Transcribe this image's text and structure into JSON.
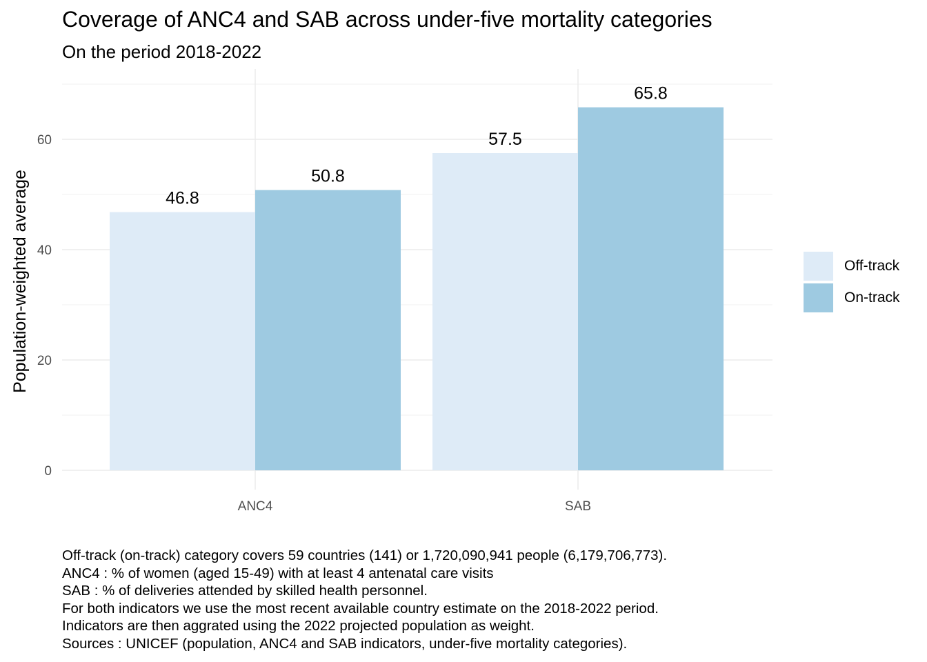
{
  "chart_data": {
    "type": "bar",
    "title": "Coverage of ANC4 and SAB across under-five mortality categories",
    "subtitle": "On the period 2018-2022",
    "xlabel": "",
    "ylabel": "Population-weighted average",
    "categories": [
      "ANC4",
      "SAB"
    ],
    "series": [
      {
        "name": "Off-track",
        "color": "#deebf7",
        "values": [
          46.8,
          57.5
        ],
        "labels": [
          "46.8",
          "57.5"
        ]
      },
      {
        "name": "On-track",
        "color": "#9ecae1",
        "values": [
          50.8,
          65.8
        ],
        "labels": [
          "50.8",
          "65.8"
        ]
      }
    ],
    "ylim": [
      0,
      71
    ],
    "yticks": [
      0,
      20,
      40,
      60
    ],
    "ytick_labels": [
      "0",
      "20",
      "40",
      "60"
    ],
    "grid": true,
    "legend_position": "right",
    "caption": [
      "Off-track (on-track) category covers 59 countries (141) or 1,720,090,941 people (6,179,706,773).",
      "ANC4 : % of women (aged 15-49) with at least 4 antenatal care visits",
      "SAB : % of deliveries attended by skilled health personnel.",
      "For both indicators we use the most recent available country estimate on the 2018-2022 period.",
      "Indicators are then aggrated using the 2022 projected population as weight.",
      "Sources : UNICEF (population, ANC4 and SAB indicators, under-five mortality categories)."
    ]
  }
}
